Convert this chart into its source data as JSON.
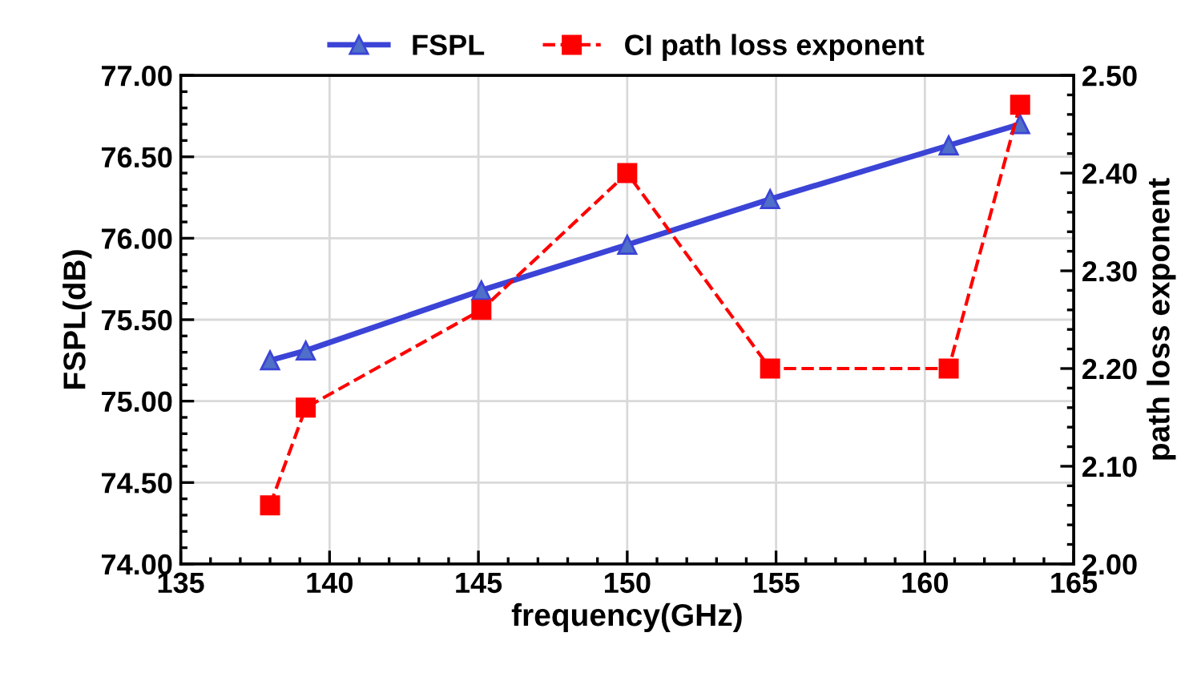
{
  "chart_data": {
    "type": "line",
    "xlabel": "frequency(GHz)",
    "ylabel": "FSPL(dB)",
    "y2label": "path loss exponent",
    "xlim": [
      135,
      165
    ],
    "xticks": [
      135,
      140,
      145,
      150,
      155,
      160,
      165
    ],
    "ylim": [
      74,
      77
    ],
    "yticks": [
      {
        "value": 74,
        "label": "74.00"
      },
      {
        "value": 74.5,
        "label": "74.50"
      },
      {
        "value": 75,
        "label": "75.00"
      },
      {
        "value": 75.5,
        "label": "75.50"
      },
      {
        "value": 76,
        "label": "76.00"
      },
      {
        "value": 76.5,
        "label": "76.50"
      },
      {
        "value": 77,
        "label": "77.00"
      }
    ],
    "y2lim": [
      2,
      2.5
    ],
    "y2ticks": [
      {
        "value": 2,
        "label": "2.00"
      },
      {
        "value": 2.1,
        "label": "2.10"
      },
      {
        "value": 2.2,
        "label": "2.20"
      },
      {
        "value": 2.3,
        "label": "2.30"
      },
      {
        "value": 2.4,
        "label": "2.40"
      },
      {
        "value": 2.5,
        "label": "2.50"
      }
    ],
    "grid": true,
    "legend": "top",
    "series": [
      {
        "name": "FSPL",
        "color": "#3b44d6",
        "marker": "triangle",
        "line_style": "solid",
        "x": [
          138.0,
          139.2,
          145.1,
          150.0,
          154.8,
          160.8,
          163.2
        ],
        "values": [
          75.25,
          75.31,
          75.68,
          75.96,
          76.24,
          76.57,
          76.7
        ]
      },
      {
        "name": "CI path loss exponent",
        "color": "#ff0000",
        "marker": "square",
        "line_style": "dashed",
        "axis": "y2",
        "x": [
          138.0,
          139.2,
          145.1,
          150.0,
          154.8,
          160.8,
          163.2
        ],
        "values": [
          2.06,
          2.16,
          2.26,
          2.4,
          2.2,
          2.2,
          2.47
        ]
      }
    ]
  }
}
